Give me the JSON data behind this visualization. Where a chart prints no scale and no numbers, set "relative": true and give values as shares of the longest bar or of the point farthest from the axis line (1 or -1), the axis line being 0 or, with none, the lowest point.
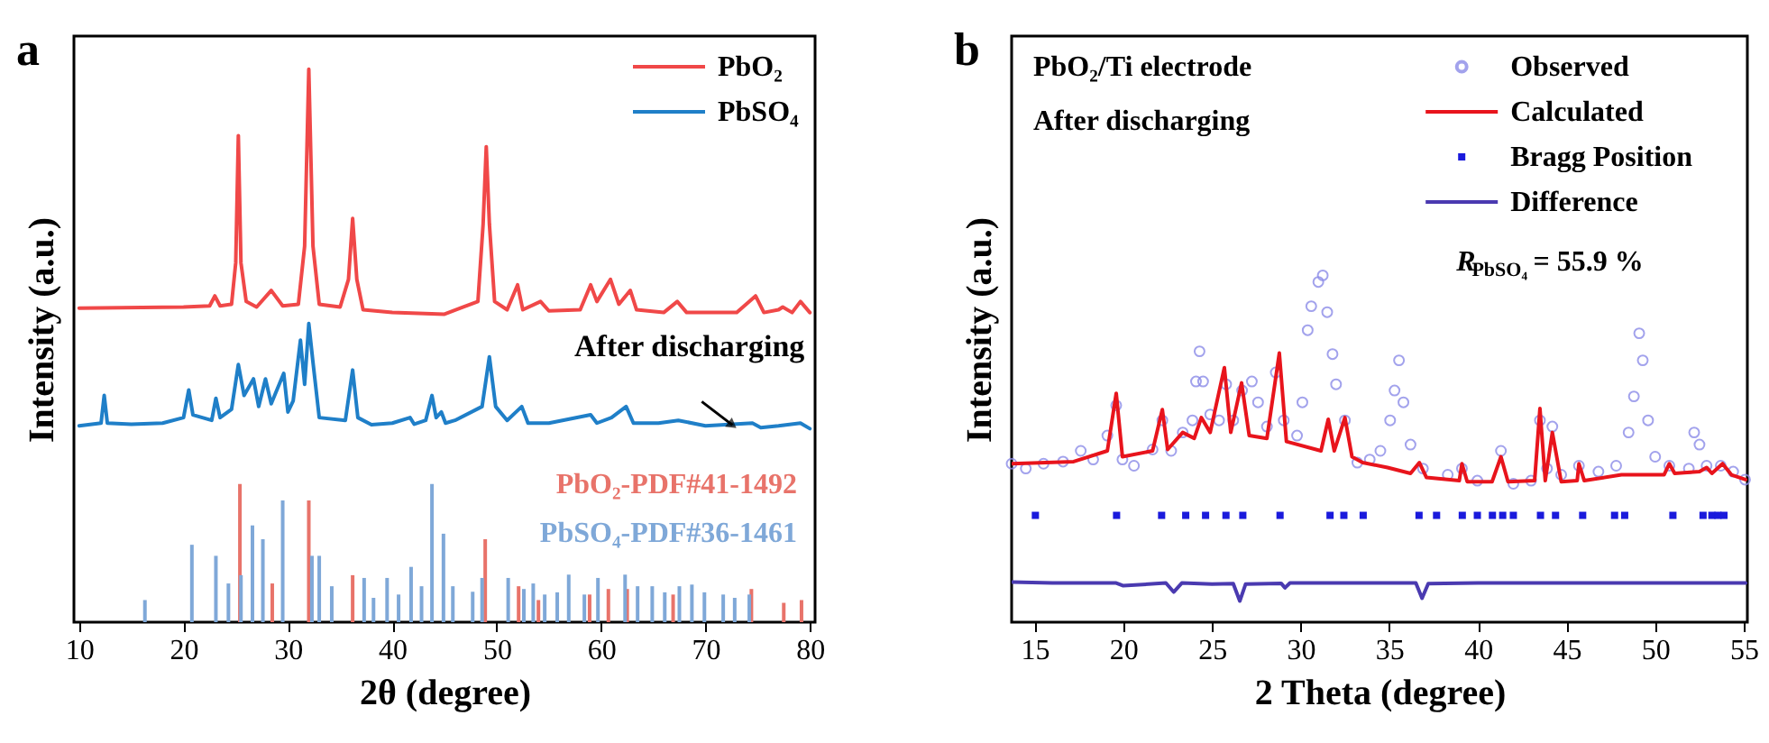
{
  "chart_data": [
    {
      "type": "line",
      "title": "a",
      "xlabel": "2θ (degree)",
      "ylabel": "Intensity (a.u.)",
      "xlim": [
        9.5,
        80.5
      ],
      "xticks": [
        10,
        20,
        30,
        40,
        50,
        60,
        70,
        80
      ],
      "relative": true,
      "grid": false,
      "legend": "top right",
      "annotations": [
        {
          "text": "After discharging",
          "x": 73.1,
          "y": 0.35
        }
      ],
      "series": [
        {
          "name": "PbO₂",
          "color": "#f04848",
          "x": [
            10,
            20,
            22.5,
            23.0,
            23.5,
            24.6,
            25.0,
            25.25,
            25.5,
            26.0,
            27,
            28.4,
            29.5,
            31,
            31.6,
            32.0,
            32.4,
            33,
            35,
            35.8,
            36.2,
            36.6,
            37.2,
            40,
            45,
            48.2,
            48.7,
            49.0,
            49.3,
            49.8,
            51,
            52.0,
            52.5,
            54.2,
            55,
            58,
            59.0,
            59.6,
            60.9,
            61.7,
            62.8,
            63.4,
            66,
            67.3,
            68.2,
            73,
            74.8,
            75.6,
            77,
            77.4,
            78.3,
            79.1,
            80
          ],
          "values": [
            0.568,
            0.57,
            0.572,
            0.59,
            0.572,
            0.575,
            0.65,
            0.88,
            0.65,
            0.58,
            0.57,
            0.6,
            0.572,
            0.575,
            0.68,
            1.0,
            0.68,
            0.575,
            0.57,
            0.62,
            0.73,
            0.62,
            0.565,
            0.56,
            0.557,
            0.58,
            0.72,
            0.86,
            0.72,
            0.58,
            0.565,
            0.61,
            0.565,
            0.58,
            0.563,
            0.565,
            0.61,
            0.58,
            0.62,
            0.575,
            0.6,
            0.565,
            0.56,
            0.58,
            0.56,
            0.56,
            0.59,
            0.56,
            0.565,
            0.57,
            0.56,
            0.58,
            0.56
          ]
        },
        {
          "name": "PbSO₄",
          "color": "#1f7fc8",
          "x": [
            10,
            12.1,
            12.4,
            12.7,
            15,
            18,
            20.0,
            20.5,
            20.9,
            22.7,
            23.1,
            23.5,
            24.6,
            25.25,
            25.8,
            26.7,
            27.2,
            27.85,
            28.4,
            29.6,
            30.0,
            30.5,
            31.2,
            31.6,
            32.0,
            32.4,
            33.0,
            35.5,
            36.2,
            36.7,
            38,
            40,
            41.7,
            42.1,
            43.2,
            43.8,
            44.2,
            44.7,
            45.1,
            46,
            48.6,
            49.3,
            49.9,
            51,
            52.4,
            53.0,
            55,
            59.0,
            59.6,
            61,
            62.4,
            63.1,
            65.5,
            67.4,
            70,
            74.5,
            75.3,
            77,
            79.1,
            80
          ],
          "values": [
            0.355,
            0.36,
            0.41,
            0.36,
            0.358,
            0.36,
            0.37,
            0.42,
            0.375,
            0.365,
            0.405,
            0.37,
            0.385,
            0.466,
            0.41,
            0.44,
            0.39,
            0.44,
            0.395,
            0.45,
            0.38,
            0.4,
            0.51,
            0.43,
            0.54,
            0.47,
            0.37,
            0.365,
            0.456,
            0.37,
            0.357,
            0.36,
            0.37,
            0.358,
            0.365,
            0.41,
            0.37,
            0.38,
            0.36,
            0.365,
            0.39,
            0.48,
            0.39,
            0.365,
            0.39,
            0.36,
            0.36,
            0.375,
            0.36,
            0.37,
            0.39,
            0.36,
            0.36,
            0.365,
            0.355,
            0.36,
            0.352,
            0.355,
            0.36,
            0.35
          ]
        },
        {
          "name": "PbO₂-PDF#41-1492",
          "type": "bar",
          "color": "#e8736a",
          "x": [
            25.4,
            28.5,
            32.0,
            36.2,
            48.9,
            52.1,
            54.0,
            58.9,
            60.7,
            62.5,
            66.9,
            74.4,
            77.5,
            79.2
          ],
          "values": [
            0.25,
            0.07,
            0.22,
            0.085,
            0.15,
            0.065,
            0.04,
            0.05,
            0.06,
            0.06,
            0.05,
            0.06,
            0.035,
            0.04
          ]
        },
        {
          "name": "PbSO₄-PDF#36-1461",
          "type": "bar",
          "color": "#7fa8d8",
          "x": [
            16.3,
            20.8,
            23.1,
            24.3,
            25.5,
            26.6,
            27.6,
            29.5,
            32.3,
            33.0,
            34.2,
            37.3,
            38.2,
            39.5,
            40.6,
            41.8,
            42.8,
            43.8,
            44.9,
            45.8,
            47.7,
            48.6,
            51.1,
            52.6,
            53.5,
            54.6,
            55.8,
            56.9,
            58.4,
            59.7,
            62.3,
            63.5,
            64.9,
            66.1,
            67.5,
            68.7,
            69.9,
            71.7,
            72.8,
            74.2
          ],
          "values": [
            0.04,
            0.14,
            0.12,
            0.07,
            0.085,
            0.175,
            0.15,
            0.22,
            0.12,
            0.12,
            0.065,
            0.08,
            0.044,
            0.08,
            0.05,
            0.1,
            0.065,
            0.25,
            0.16,
            0.065,
            0.055,
            0.08,
            0.08,
            0.06,
            0.07,
            0.05,
            0.054,
            0.086,
            0.05,
            0.08,
            0.086,
            0.065,
            0.065,
            0.054,
            0.065,
            0.068,
            0.054,
            0.05,
            0.044,
            0.05
          ]
        }
      ]
    },
    {
      "type": "line",
      "title": "b",
      "xlabel": "2 Theta (degree)",
      "ylabel": "Intensity (a.u.)",
      "xlim": [
        13.7,
        55.2
      ],
      "xticks": [
        15,
        20,
        25,
        30,
        35,
        40,
        45,
        50,
        55
      ],
      "relative": true,
      "grid": false,
      "legend": "top right",
      "annotations": [
        "PbO₂/Ti electrode",
        "After discharging",
        "R$_{PbSO₄}$= 55.9 %"
      ],
      "series": [
        {
          "name": "Observed",
          "type": "scatter",
          "marker": "circle",
          "color": "#8c8ce8",
          "x": [
            13.7,
            14.5,
            15.5,
            16.6,
            17.6,
            18.3,
            19.1,
            19.6,
            19.95,
            20.6,
            21.65,
            22.2,
            22.7,
            23.35,
            23.9,
            24.1,
            24.3,
            24.5,
            24.9,
            25.4,
            25.8,
            26.2,
            26.7,
            27.25,
            27.6,
            28.1,
            28.6,
            29.05,
            29.8,
            30.1,
            30.4,
            30.6,
            31.0,
            31.25,
            31.5,
            31.8,
            32.0,
            32.5,
            33.2,
            33.9,
            34.5,
            35.05,
            35.3,
            35.55,
            35.8,
            36.2,
            36.9,
            38.3,
            39.1,
            39.97,
            41.3,
            42.0,
            43.0,
            43.5,
            43.9,
            44.2,
            44.7,
            45.7,
            46.8,
            47.8,
            48.5,
            48.8,
            49.1,
            49.3,
            49.6,
            50.0,
            50.8,
            51.9,
            52.2,
            52.5,
            52.9,
            53.7,
            54.4,
            55.07
          ],
          "values": [
            0.457,
            0.443,
            0.457,
            0.463,
            0.494,
            0.469,
            0.538,
            0.625,
            0.469,
            0.451,
            0.498,
            0.582,
            0.494,
            0.547,
            0.582,
            0.694,
            0.781,
            0.694,
            0.599,
            0.582,
            0.686,
            0.582,
            0.668,
            0.694,
            0.634,
            0.564,
            0.72,
            0.582,
            0.538,
            0.634,
            0.842,
            0.911,
            0.981,
            1.0,
            0.894,
            0.773,
            0.686,
            0.582,
            0.46,
            0.469,
            0.494,
            0.582,
            0.668,
            0.755,
            0.634,
            0.512,
            0.443,
            0.425,
            0.443,
            0.408,
            0.494,
            0.399,
            0.408,
            0.582,
            0.443,
            0.564,
            0.425,
            0.451,
            0.434,
            0.451,
            0.547,
            0.651,
            0.833,
            0.755,
            0.582,
            0.477,
            0.451,
            0.443,
            0.547,
            0.512,
            0.451,
            0.451,
            0.434,
            0.411
          ]
        },
        {
          "name": "Calculated",
          "color": "#e8141c",
          "x": [
            13.7,
            17.2,
            19.1,
            19.6,
            19.95,
            21.65,
            22.2,
            22.5,
            23.35,
            24.0,
            24.4,
            24.9,
            25.7,
            26.06,
            26.67,
            27.1,
            28.1,
            28.8,
            29.2,
            31.15,
            31.56,
            31.9,
            32.5,
            32.9,
            33.5,
            34.9,
            36.2,
            36.7,
            37.1,
            38.95,
            39.1,
            39.4,
            40.8,
            41.3,
            41.7,
            43.2,
            43.5,
            43.8,
            44.2,
            44.7,
            45.6,
            45.7,
            46.0,
            48.1,
            50.5,
            50.8,
            51.1,
            52.5,
            52.9,
            53.2,
            53.8,
            54.3,
            55.1
          ],
          "values": [
            0.457,
            0.463,
            0.494,
            0.66,
            0.477,
            0.494,
            0.613,
            0.498,
            0.547,
            0.53,
            0.59,
            0.547,
            0.734,
            0.547,
            0.69,
            0.538,
            0.53,
            0.776,
            0.521,
            0.494,
            0.585,
            0.494,
            0.59,
            0.477,
            0.46,
            0.446,
            0.429,
            0.46,
            0.417,
            0.408,
            0.457,
            0.405,
            0.405,
            0.477,
            0.405,
            0.408,
            0.616,
            0.408,
            0.547,
            0.405,
            0.408,
            0.457,
            0.408,
            0.425,
            0.425,
            0.457,
            0.429,
            0.434,
            0.446,
            0.429,
            0.457,
            0.425,
            0.411
          ]
        },
        {
          "name": "Bragg Position",
          "type": "scatter",
          "marker": "square",
          "color": "#1a1adc",
          "x": [
            15.04,
            19.62,
            22.16,
            23.52,
            24.64,
            25.79,
            26.74,
            28.84,
            31.66,
            32.44,
            33.53,
            36.68,
            37.67,
            39.12,
            39.97,
            40.82,
            41.4,
            42.0,
            43.53,
            44.38,
            45.91,
            47.71,
            48.28,
            51.0,
            52.7,
            53.2,
            53.54,
            53.88
          ],
          "values": [
            0.308,
            0.308,
            0.308,
            0.308,
            0.308,
            0.308,
            0.308,
            0.308,
            0.308,
            0.308,
            0.308,
            0.308,
            0.308,
            0.308,
            0.308,
            0.308,
            0.308,
            0.308,
            0.308,
            0.308,
            0.308,
            0.308,
            0.308,
            0.308,
            0.308,
            0.308,
            0.308,
            0.308
          ]
        },
        {
          "name": "Difference",
          "color": "#4a3ab0",
          "x": [
            13.7,
            16.0,
            19.6,
            20.0,
            22.4,
            22.84,
            23.3,
            25.0,
            26.2,
            26.57,
            26.9,
            28.9,
            29.12,
            29.4,
            33.0,
            36.5,
            36.85,
            37.2,
            40.0,
            45.0,
            50.0,
            55.1
          ],
          "values": [
            0.116,
            0.113,
            0.113,
            0.105,
            0.113,
            0.087,
            0.113,
            0.11,
            0.111,
            0.061,
            0.11,
            0.112,
            0.099,
            0.113,
            0.113,
            0.113,
            0.069,
            0.111,
            0.113,
            0.113,
            0.113,
            0.113
          ]
        }
      ]
    }
  ]
}
